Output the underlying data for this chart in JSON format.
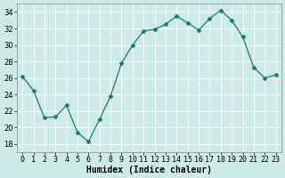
{
  "x": [
    0,
    1,
    2,
    3,
    4,
    5,
    6,
    7,
    8,
    9,
    10,
    11,
    12,
    13,
    14,
    15,
    16,
    17,
    18,
    19,
    20,
    21,
    22,
    23
  ],
  "y": [
    26.2,
    24.5,
    21.2,
    21.3,
    22.7,
    19.4,
    18.3,
    21.0,
    23.8,
    27.8,
    30.0,
    31.7,
    31.9,
    32.5,
    33.5,
    32.7,
    31.8,
    33.2,
    34.2,
    33.0,
    31.0,
    27.3,
    26.0,
    26.4
  ],
  "line_color": "#1a7a6e",
  "marker": "D",
  "marker_size": 2.5,
  "bg_color": "#cceae7",
  "grid_color": "#ffffff",
  "xlabel": "Humidex (Indice chaleur)",
  "xlim": [
    -0.5,
    23.5
  ],
  "ylim": [
    17,
    35
  ],
  "yticks": [
    18,
    20,
    22,
    24,
    26,
    28,
    30,
    32,
    34
  ],
  "xtick_labels": [
    "0",
    "1",
    "2",
    "3",
    "4",
    "5",
    "6",
    "7",
    "8",
    "9",
    "10",
    "11",
    "12",
    "13",
    "14",
    "15",
    "16",
    "17",
    "18",
    "19",
    "20",
    "21",
    "22",
    "23"
  ],
  "label_fontsize": 7,
  "tick_fontsize": 6
}
